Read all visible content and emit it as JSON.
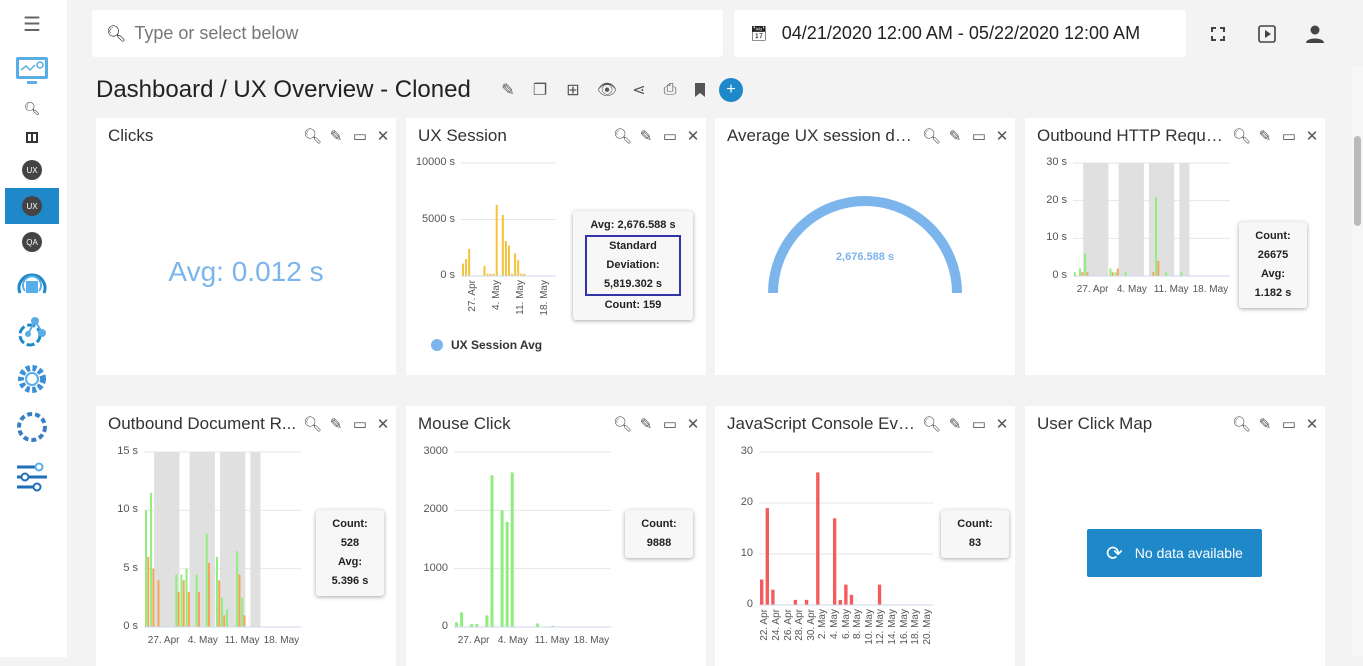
{
  "search": {
    "placeholder": "Type or select below"
  },
  "date_range": "04/21/2020 12:00 AM - 05/22/2020 12:00 AM",
  "title": "Dashboard / UX Overview - Cloned",
  "sidebar": {
    "items": [
      {
        "label": "UX"
      },
      {
        "label": "UX",
        "active": true
      },
      {
        "label": "QA"
      }
    ]
  },
  "colors": {
    "accent": "#1e88c9",
    "yellow": "#f7c23b",
    "green": "#90ee7e",
    "orange": "#f7a35c",
    "red": "#f45b5b",
    "gauge": "#7cb5ec"
  },
  "widgets": [
    {
      "title": "Clicks",
      "value": "Avg: 0.012 s"
    },
    {
      "title": "UX Session",
      "legend": "UX Session Avg",
      "tip": [
        "Avg: 2,676.588 s",
        "Standard",
        "Deviation:",
        "5,819.302 s",
        "Count: 159"
      ],
      "chart": {
        "ymax": 10000,
        "yticks": [
          "0 s",
          "5000 s",
          "10000 s"
        ],
        "xlabels": [
          "27. Apr",
          "4. May",
          "11. May",
          "18. May"
        ],
        "series": [
          {
            "color": "#f7c23b",
            "values": [
              1100,
              1500,
              2400,
              0,
              0,
              0,
              0,
              900,
              200,
              200,
              200,
              6300,
              0,
              5400,
              3100,
              2700,
              200,
              2000,
              1400,
              200,
              200,
              0,
              0,
              0,
              0,
              0,
              0,
              0,
              0,
              0,
              0
            ]
          }
        ]
      }
    },
    {
      "title": "Average UX session du...",
      "value": "2,676.588 s"
    },
    {
      "title": "Outbound HTTP Reque...",
      "tip": [
        "Count:",
        "26675",
        "Avg:",
        "1.182 s"
      ],
      "chart": {
        "ymax": 30,
        "yticks": [
          "0 s",
          "10 s",
          "20 s",
          "30 s"
        ],
        "xlabels": [
          "27. Apr",
          "4. May",
          "11. May",
          "18. May"
        ],
        "series": [
          {
            "color": "#90ee7e",
            "values": [
              1,
              2,
              6,
              0,
              0,
              0,
              0,
              2,
              1,
              0,
              1,
              0,
              0,
              0,
              0,
              0,
              21,
              0,
              1,
              0,
              0,
              1,
              0,
              0,
              0,
              0,
              0,
              0,
              0,
              0,
              0
            ]
          },
          {
            "color": "#f7a35c",
            "values": [
              0,
              1,
              1,
              0,
              0,
              0,
              0,
              1,
              2,
              0,
              0,
              0,
              0,
              0,
              0,
              1,
              4,
              0,
              0,
              0,
              0,
              0,
              0,
              0,
              0,
              0,
              0,
              0,
              0,
              0,
              0
            ]
          }
        ]
      }
    },
    {
      "title": "Outbound Document R...",
      "tip": [
        "Count:",
        "528",
        "Avg:",
        "5.396 s"
      ],
      "chart": {
        "ymax": 15,
        "yticks": [
          "0 s",
          "5 s",
          "10 s",
          "15 s"
        ],
        "xlabels": [
          "27. Apr",
          "4. May",
          "11. May",
          "18. May"
        ],
        "series": [
          {
            "color": "#90ee7e",
            "values": [
              10,
              11.5,
              0,
              0,
              0,
              0,
              4.5,
              4.5,
              5,
              0,
              4.5,
              0,
              8,
              0,
              6,
              2.5,
              1.5,
              0,
              6.5,
              2.5,
              0,
              0,
              0,
              0,
              0,
              0,
              0,
              0,
              0,
              0,
              0
            ]
          },
          {
            "color": "#f7a35c",
            "values": [
              6,
              5,
              4,
              0,
              0,
              0,
              3,
              4,
              3,
              0,
              3,
              0,
              5.5,
              0,
              4,
              1,
              0,
              0,
              4.5,
              1,
              0,
              0,
              0,
              0,
              0,
              0,
              0,
              0,
              0,
              0,
              0
            ]
          }
        ]
      }
    },
    {
      "title": "Mouse Click",
      "tip": [
        "Count:",
        "9888"
      ],
      "chart": {
        "ymax": 3000,
        "yticks": [
          "0",
          "1000",
          "2000",
          "3000"
        ],
        "xlabels": [
          "27. Apr",
          "4. May",
          "11. May",
          "18. May"
        ],
        "series": [
          {
            "color": "#90ee7e",
            "values": [
              80,
              250,
              0,
              50,
              50,
              0,
              200,
              2600,
              0,
              2000,
              1800,
              2650,
              0,
              0,
              0,
              0,
              60,
              0,
              0,
              20,
              0,
              0,
              0,
              0,
              0,
              0,
              0,
              0,
              0,
              0,
              0
            ]
          }
        ]
      }
    },
    {
      "title": "JavaScript Console Event",
      "tip": [
        "Count:",
        "83"
      ],
      "chart": {
        "ymax": 30,
        "yticks": [
          "0",
          "10",
          "20",
          "30"
        ],
        "xlabels": [
          "22. Apr",
          "24. Apr",
          "26. Apr",
          "28. Apr",
          "30. Apr",
          "2. May",
          "4. May",
          "6. May",
          "8. May",
          "10. May",
          "12. May",
          "14. May",
          "16. May",
          "18. May",
          "20. May"
        ],
        "series": [
          {
            "color": "#f45b5b",
            "values": [
              5,
              19,
              3,
              0,
              0,
              0,
              1,
              0,
              1,
              0,
              26,
              0,
              0,
              17,
              1,
              4,
              2,
              0,
              0,
              0,
              0,
              4,
              0,
              0,
              0,
              0,
              0,
              0,
              0,
              0,
              0
            ]
          }
        ]
      }
    },
    {
      "title": "User Click Map",
      "nodata": "No data available"
    }
  ]
}
